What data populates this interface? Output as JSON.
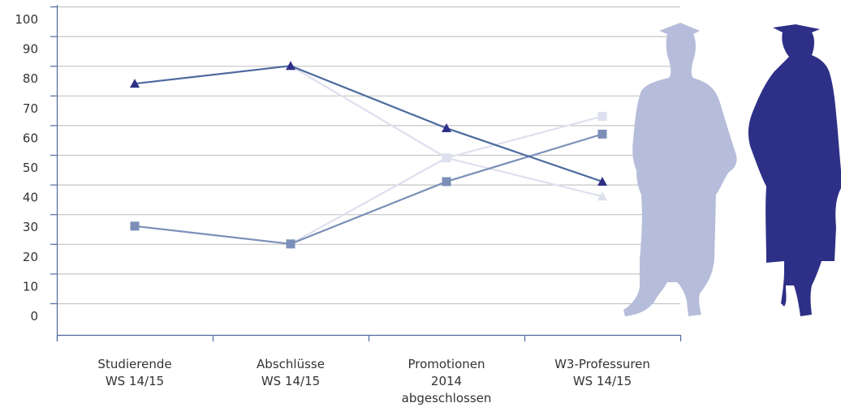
{
  "chart_data": {
    "type": "line",
    "categories": [
      [
        "Studierende",
        "WS 14/15"
      ],
      [
        "Abschlüsse",
        "WS 14/15"
      ],
      [
        "Promotionen",
        "2014",
        "abgeschlossen"
      ],
      [
        "W3-Professuren",
        "WS 14/15"
      ]
    ],
    "yticks": [
      "0",
      "10",
      "20",
      "30",
      "40",
      "50",
      "60",
      "70",
      "80",
      "90",
      "100"
    ],
    "ylim": [
      0,
      100
    ],
    "grid": true,
    "series": [
      {
        "marker": "triangle",
        "color": "#2e3087",
        "line_color": "#4e6aa0",
        "values": [
          74,
          80,
          59,
          41
        ]
      },
      {
        "marker": "triangle",
        "color": "#dde0ee",
        "line_color": "#dde0ee",
        "values": [
          null,
          80,
          49,
          36
        ]
      },
      {
        "marker": "square",
        "color": "#dde0ee",
        "line_color": "#dde0ee",
        "values": [
          null,
          20,
          49,
          63
        ]
      },
      {
        "marker": "square",
        "color": "#7b8fb8",
        "line_color": "#7b8fb8",
        "values": [
          26,
          20,
          41,
          57
        ]
      }
    ],
    "decorations": [
      {
        "name": "male-graduate-silhouette",
        "color": "#b6bddb"
      },
      {
        "name": "female-graduate-silhouette",
        "color": "#2e3087"
      }
    ]
  }
}
